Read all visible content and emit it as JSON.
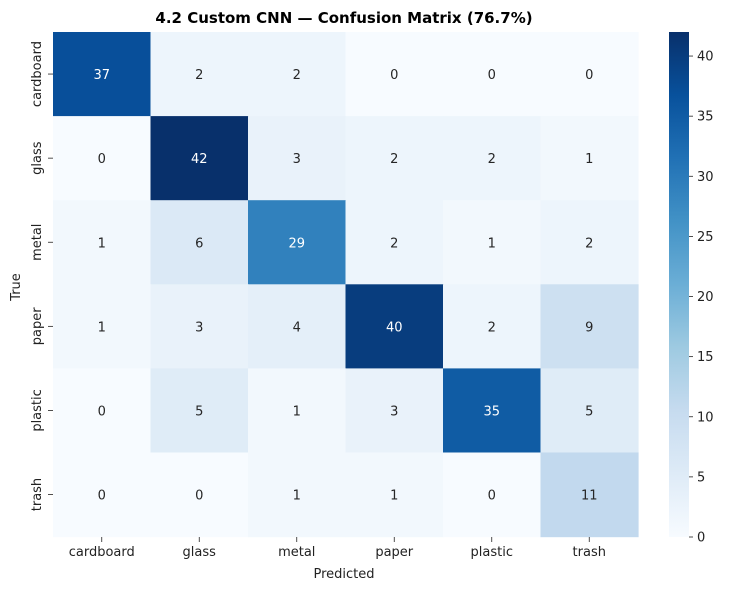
{
  "chart_data": {
    "type": "heatmap",
    "title": "4.2 Custom CNN — Confusion Matrix (76.7%)",
    "xlabel": "Predicted",
    "ylabel": "True",
    "x_categories": [
      "cardboard",
      "glass",
      "metal",
      "paper",
      "plastic",
      "trash"
    ],
    "y_categories": [
      "cardboard",
      "glass",
      "metal",
      "paper",
      "plastic",
      "trash"
    ],
    "values": [
      [
        37,
        2,
        2,
        0,
        0,
        0
      ],
      [
        0,
        42,
        3,
        2,
        2,
        1
      ],
      [
        1,
        6,
        29,
        2,
        1,
        2
      ],
      [
        1,
        3,
        4,
        40,
        2,
        9
      ],
      [
        0,
        5,
        1,
        3,
        35,
        5
      ],
      [
        0,
        0,
        1,
        1,
        0,
        11
      ]
    ],
    "colormap": "Blues",
    "colorbar": {
      "range": [
        0,
        42
      ],
      "ticks": [
        0,
        5,
        10,
        15,
        20,
        25,
        30,
        35,
        40
      ]
    },
    "colors": {
      "low": "#f7fbff",
      "high": "#08306b"
    }
  }
}
